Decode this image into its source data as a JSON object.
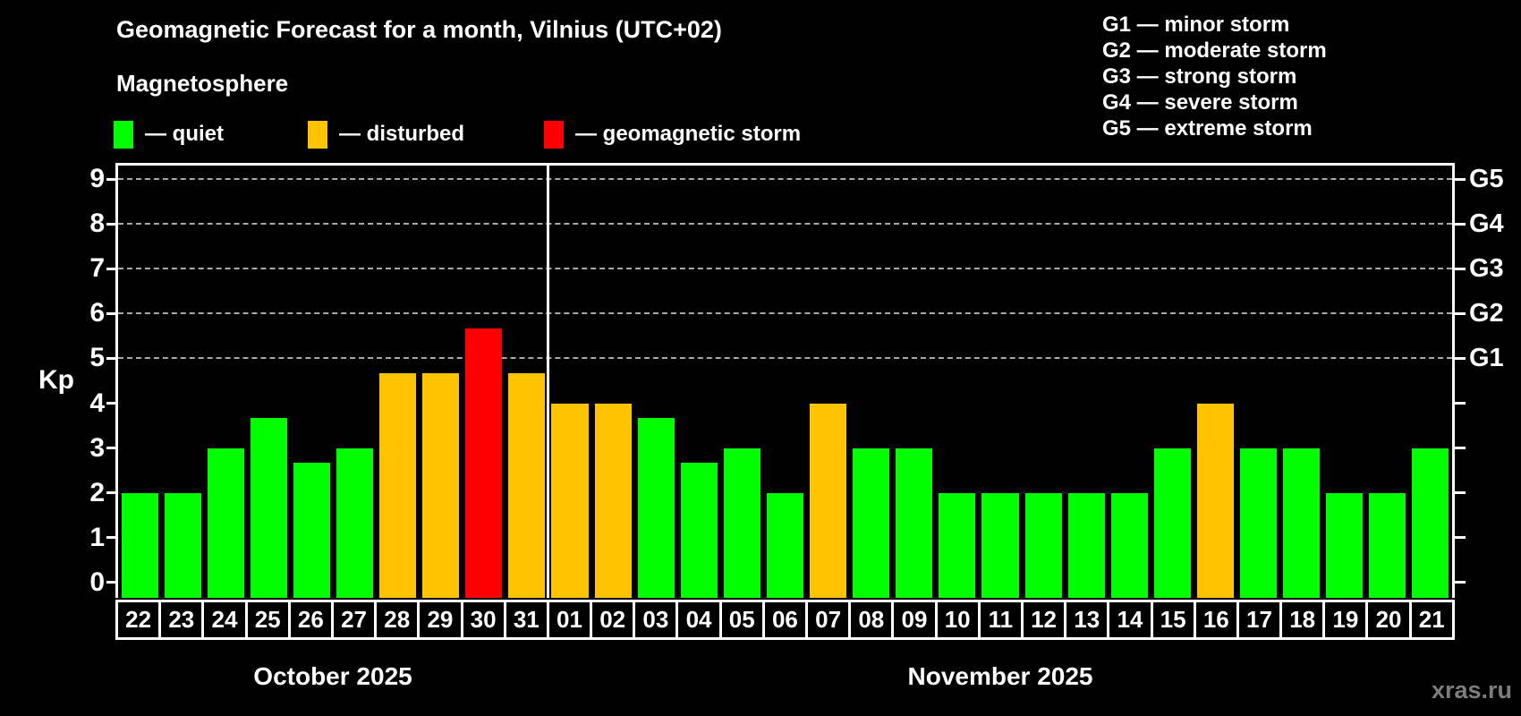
{
  "title": "Geomagnetic Forecast for a month, Vilnius (UTC+02)",
  "subtitle": "Magnetosphere",
  "legend": {
    "items": [
      {
        "key": "quiet",
        "label": "— quiet",
        "color": "#00ff00"
      },
      {
        "key": "disturbed",
        "label": "— disturbed",
        "color": "#ffc400"
      },
      {
        "key": "storm",
        "label": "— geomagnetic storm",
        "color": "#ff0000"
      }
    ]
  },
  "storm_legend": {
    "lines": [
      {
        "label": "G1 — minor storm"
      },
      {
        "label": "G2 — moderate storm"
      },
      {
        "label": "G3 — strong storm"
      },
      {
        "label": "G4 — severe storm"
      },
      {
        "label": "G5 — extreme storm"
      }
    ]
  },
  "chart_data": {
    "type": "bar",
    "ylabel": "Kp",
    "ylim": [
      -0.34,
      9.36
    ],
    "yticks": [
      0,
      1,
      2,
      3,
      4,
      5,
      6,
      7,
      8,
      9
    ],
    "gridlines_kp": [
      5,
      6,
      7,
      8,
      9
    ],
    "grid_on": true,
    "right_axis_labels": [
      {
        "kp": 5,
        "label": "G1"
      },
      {
        "kp": 6,
        "label": "G2"
      },
      {
        "kp": 7,
        "label": "G3"
      },
      {
        "kp": 8,
        "label": "G4"
      },
      {
        "kp": 9,
        "label": "G5"
      }
    ],
    "months": [
      {
        "label": "October 2025",
        "days": 10
      },
      {
        "label": "November 2025",
        "days": 21
      }
    ],
    "categories": [
      "22",
      "23",
      "24",
      "25",
      "26",
      "27",
      "28",
      "29",
      "30",
      "31",
      "01",
      "02",
      "03",
      "04",
      "05",
      "06",
      "07",
      "08",
      "09",
      "10",
      "11",
      "12",
      "13",
      "14",
      "15",
      "16",
      "17",
      "18",
      "19",
      "20",
      "21"
    ],
    "values": [
      2,
      2,
      3,
      3.67,
      2.67,
      3,
      4.67,
      4.67,
      5.67,
      4.67,
      4,
      4,
      3.67,
      2.67,
      3,
      2,
      4,
      3,
      3,
      2,
      2,
      2,
      2,
      2,
      3,
      4,
      3,
      3,
      2,
      2,
      3
    ],
    "statuses": [
      "quiet",
      "quiet",
      "quiet",
      "quiet",
      "quiet",
      "quiet",
      "disturbed",
      "disturbed",
      "storm",
      "disturbed",
      "disturbed",
      "disturbed",
      "quiet",
      "quiet",
      "quiet",
      "quiet",
      "disturbed",
      "quiet",
      "quiet",
      "quiet",
      "quiet",
      "quiet",
      "quiet",
      "quiet",
      "quiet",
      "disturbed",
      "quiet",
      "quiet",
      "quiet",
      "quiet",
      "quiet"
    ]
  },
  "watermark": "xras.ru",
  "colors": {
    "background": "#000000",
    "quiet": "#00ff00",
    "disturbed": "#ffc400",
    "storm": "#ff0000",
    "axis": "#ffffff",
    "grid": "#a9a9a9",
    "watermark": "#7d7d7d"
  }
}
